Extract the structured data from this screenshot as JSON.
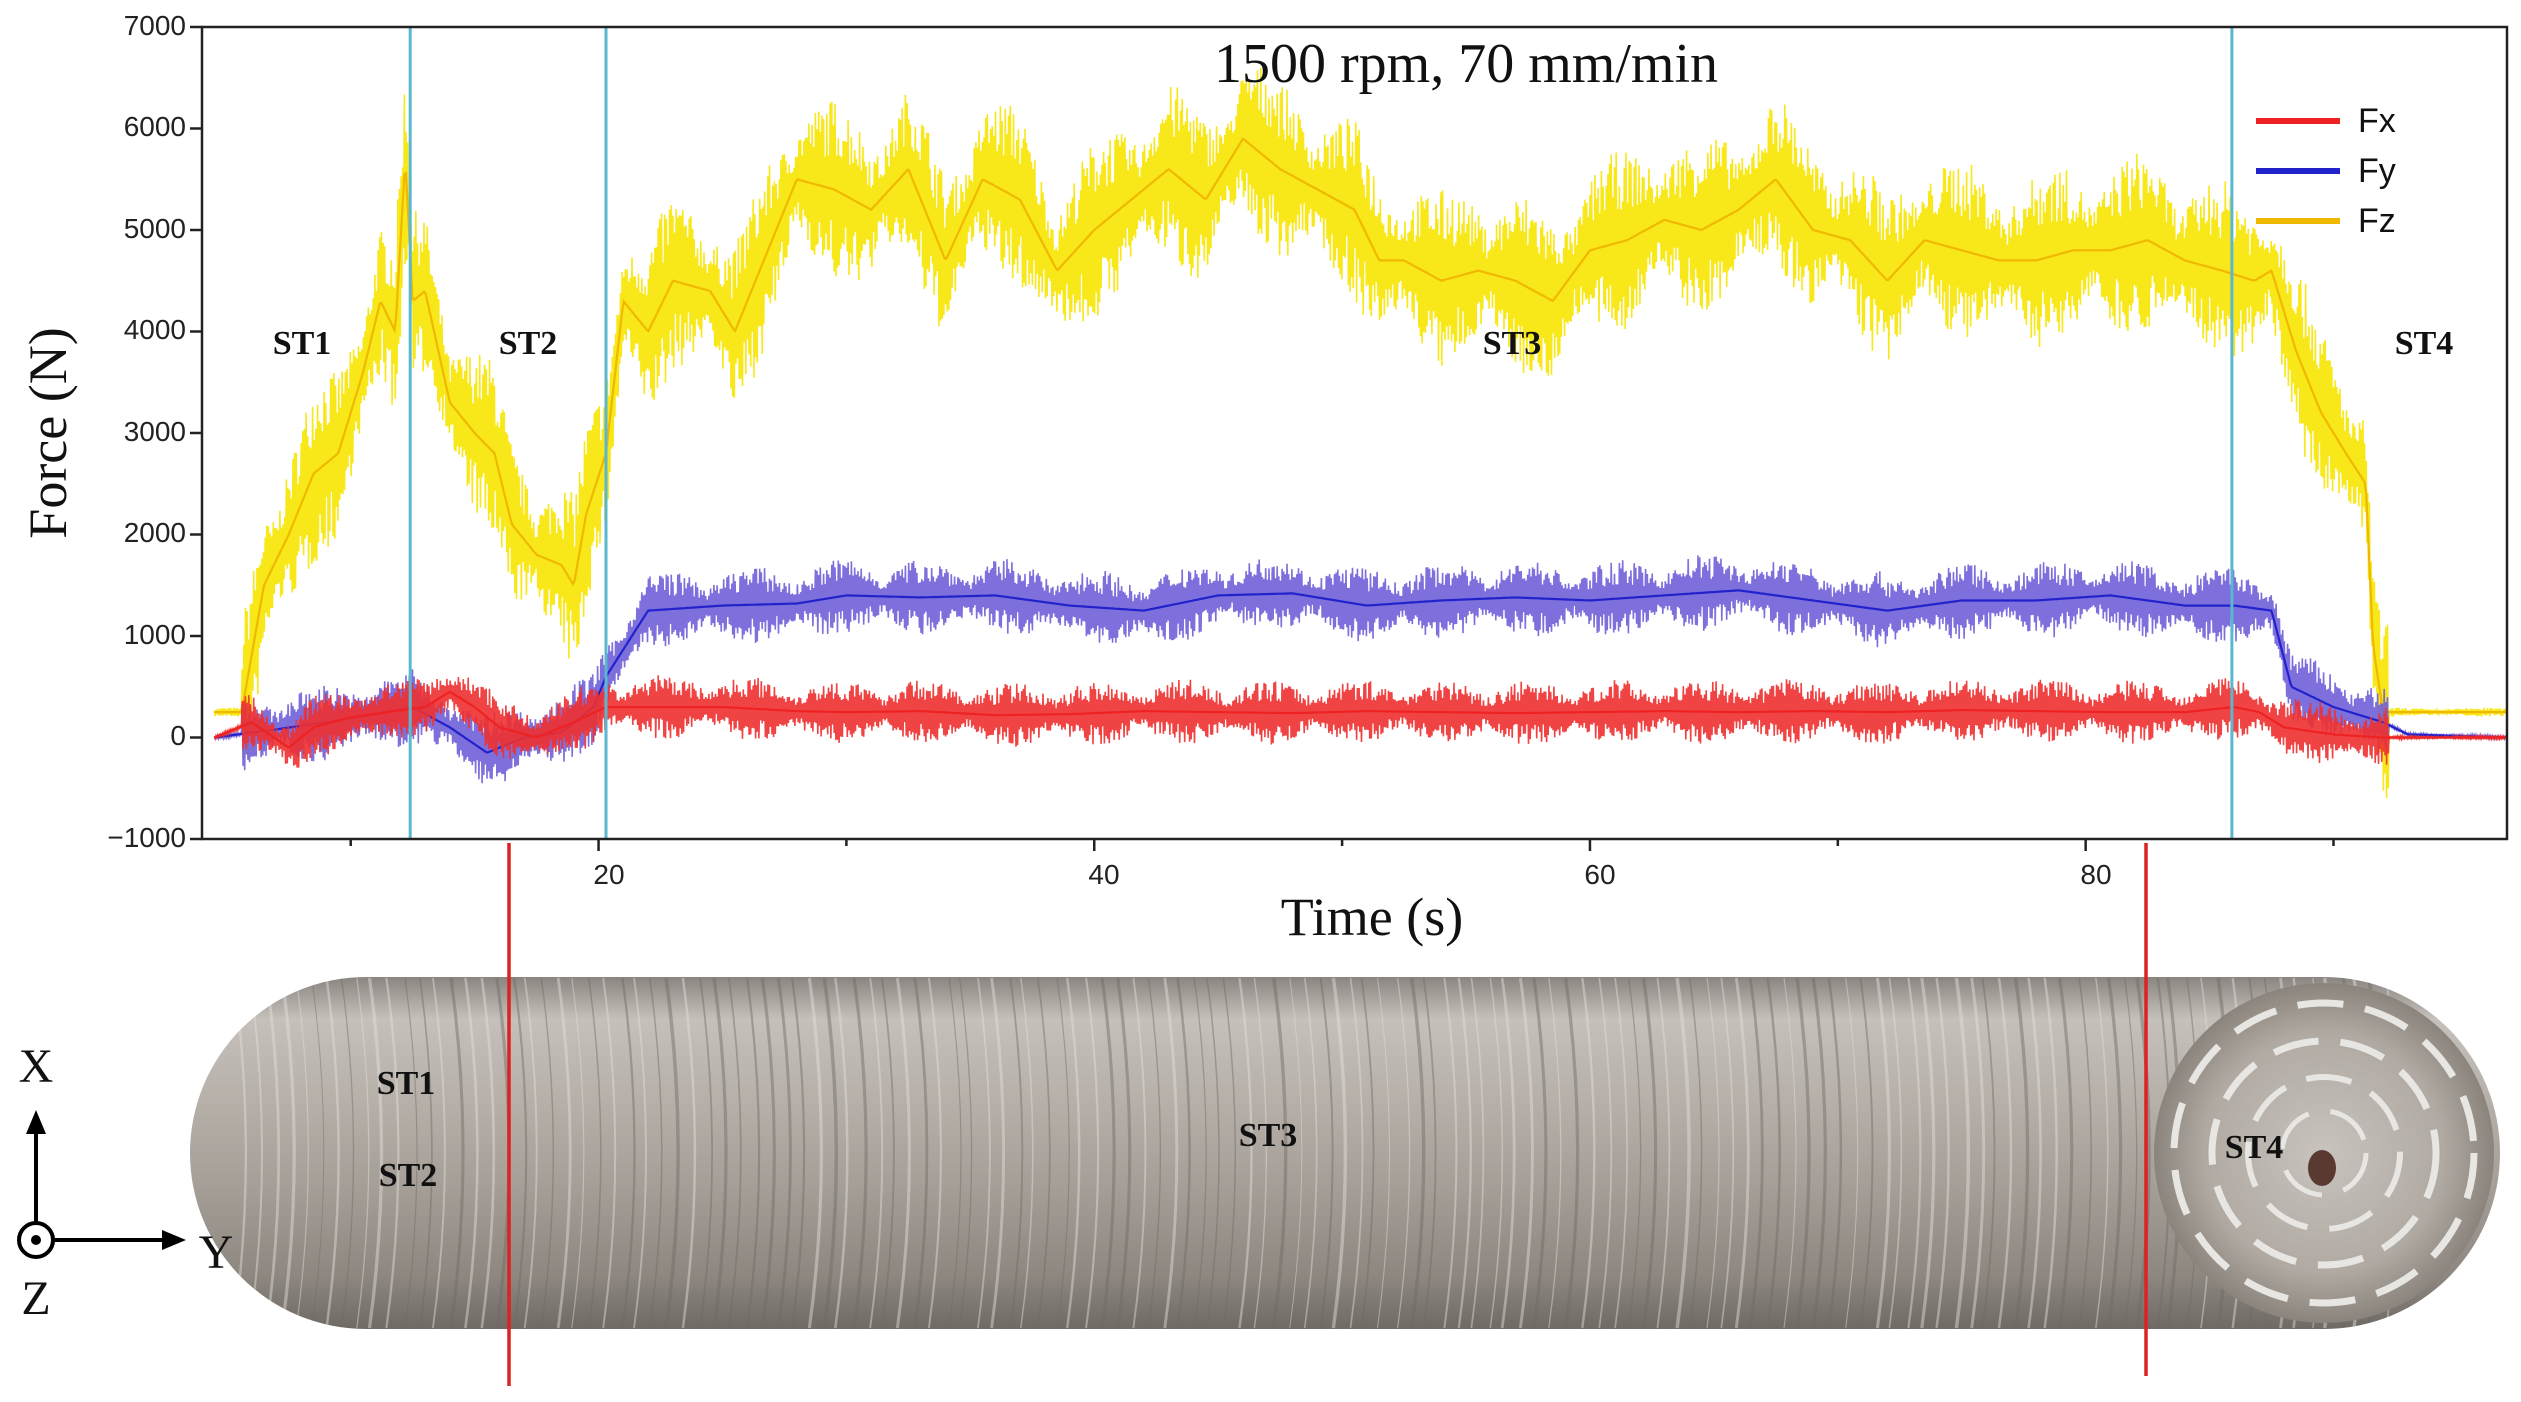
{
  "chart_data": {
    "type": "line",
    "title": "1500 rpm, 70 mm/min",
    "xlabel": "Time (s)",
    "ylabel": "Force (N)",
    "xlim": [
      4,
      97
    ],
    "ylim": [
      -1000,
      7000
    ],
    "x_ticks": [
      20,
      40,
      60,
      80
    ],
    "y_ticks": [
      -1000,
      0,
      1000,
      2000,
      3000,
      4000,
      5000,
      6000,
      7000
    ],
    "x_tick_labels": [
      "20",
      "40",
      "60",
      "80"
    ],
    "y_tick_labels": [
      "−1000",
      "0",
      "1000",
      "2000",
      "3000",
      "4000",
      "5000",
      "6000",
      "7000"
    ],
    "legend": {
      "position": "top-right",
      "entries": [
        {
          "name": "Fx",
          "color": "#ee2222"
        },
        {
          "name": "Fy",
          "color": "#2222cc"
        },
        {
          "name": "Fz",
          "color": "#f0b800"
        }
      ]
    },
    "stage_boundaries_s": [
      12.4,
      20.3,
      85.9
    ],
    "stage_labels": [
      {
        "text": "ST1",
        "x": 8.0,
        "y": 3900
      },
      {
        "text": "ST2",
        "x": 17.0,
        "y": 3900
      },
      {
        "text": "ST3",
        "x": 57.0,
        "y": 3900
      },
      {
        "text": "ST4",
        "x": 94.0,
        "y": 3900
      }
    ],
    "series": [
      {
        "name": "Fz",
        "color": "#f0b800",
        "fill_color": "#f7e600",
        "noise": 900,
        "x": [
          4.5,
          5.6,
          6.5,
          7.5,
          8.5,
          9.5,
          10.5,
          11.2,
          11.8,
          12.2,
          12.5,
          13.0,
          14.0,
          15.0,
          15.8,
          16.5,
          17.5,
          18.5,
          19.0,
          19.5,
          20.3,
          21.0,
          22.0,
          23.0,
          24.5,
          25.5,
          26.5,
          28.0,
          29.5,
          31.0,
          32.5,
          34.0,
          35.5,
          37.0,
          38.5,
          40.0,
          41.5,
          43.0,
          44.5,
          46.0,
          47.5,
          49.0,
          50.5,
          51.5,
          52.5,
          54.0,
          55.5,
          57.0,
          58.5,
          60.0,
          61.5,
          63.0,
          64.5,
          66.0,
          67.5,
          69.0,
          70.5,
          72.0,
          73.5,
          75.0,
          76.5,
          78.0,
          79.5,
          81.0,
          82.5,
          84.0,
          85.5,
          86.8,
          87.5,
          88.5,
          89.5,
          90.5,
          91.3,
          91.6,
          92.0,
          97.0
        ],
        "values": [
          250,
          250,
          1500,
          2000,
          2600,
          2800,
          3600,
          4300,
          4000,
          5700,
          4300,
          4400,
          3300,
          3000,
          2800,
          2100,
          1800,
          1700,
          1500,
          2200,
          2800,
          4300,
          4000,
          4500,
          4400,
          4000,
          4600,
          5500,
          5400,
          5200,
          5600,
          4700,
          5500,
          5300,
          4600,
          5000,
          5300,
          5600,
          5300,
          5900,
          5600,
          5400,
          5200,
          4700,
          4700,
          4500,
          4600,
          4500,
          4300,
          4800,
          4900,
          5100,
          5000,
          5200,
          5500,
          5000,
          4900,
          4500,
          4900,
          4800,
          4700,
          4700,
          4800,
          4800,
          4900,
          4700,
          4600,
          4500,
          4600,
          3800,
          3200,
          2800,
          2500,
          900,
          250,
          250
        ]
      },
      {
        "name": "Fy",
        "color": "#2222cc",
        "fill_color": "#7060d8",
        "noise": 380,
        "x": [
          4.5,
          7.0,
          9.0,
          11.0,
          12.5,
          14.0,
          15.5,
          17.0,
          18.5,
          19.8,
          20.3,
          22.0,
          25.0,
          28.0,
          30.0,
          33.0,
          36.0,
          39.0,
          42.0,
          45.0,
          48.0,
          51.0,
          54.0,
          57.0,
          60.0,
          63.0,
          66.0,
          69.0,
          72.0,
          75.0,
          78.0,
          81.0,
          84.0,
          86.0,
          87.5,
          88.3,
          90.0,
          92.0,
          93.0,
          97.0
        ],
        "values": [
          0,
          80,
          150,
          230,
          300,
          100,
          -150,
          0,
          50,
          300,
          600,
          1250,
          1300,
          1320,
          1400,
          1380,
          1400,
          1300,
          1250,
          1400,
          1420,
          1300,
          1350,
          1380,
          1350,
          1400,
          1450,
          1350,
          1250,
          1350,
          1350,
          1400,
          1300,
          1300,
          1250,
          500,
          300,
          150,
          30,
          0
        ]
      },
      {
        "name": "Fx",
        "color": "#ee2222",
        "fill_color": "#ee3030",
        "noise": 320,
        "x": [
          4.5,
          6.0,
          7.5,
          8.5,
          10.0,
          11.5,
          13.0,
          14.0,
          15.0,
          16.0,
          17.5,
          19.0,
          20.3,
          22.0,
          25.0,
          28.0,
          30.0,
          33.0,
          36.0,
          39.0,
          42.0,
          45.0,
          48.0,
          51.0,
          54.0,
          57.0,
          60.0,
          63.0,
          66.0,
          69.0,
          72.0,
          75.0,
          78.0,
          81.0,
          84.0,
          86.0,
          87.0,
          88.0,
          90.0,
          92.0,
          97.0
        ],
        "values": [
          0,
          150,
          -100,
          100,
          200,
          250,
          300,
          450,
          300,
          100,
          0,
          150,
          300,
          300,
          300,
          260,
          250,
          260,
          220,
          230,
          260,
          250,
          240,
          260,
          250,
          240,
          250,
          260,
          250,
          260,
          250,
          270,
          260,
          250,
          250,
          300,
          250,
          100,
          30,
          0,
          0
        ]
      }
    ]
  },
  "photo": {
    "labels": [
      "ST1",
      "ST2",
      "ST3",
      "ST4"
    ],
    "axes": {
      "x": "X",
      "y": "Y",
      "z": "Z"
    },
    "marker_times_s": [
      16.0,
      82.0
    ],
    "marker_color": "#dd2222"
  }
}
